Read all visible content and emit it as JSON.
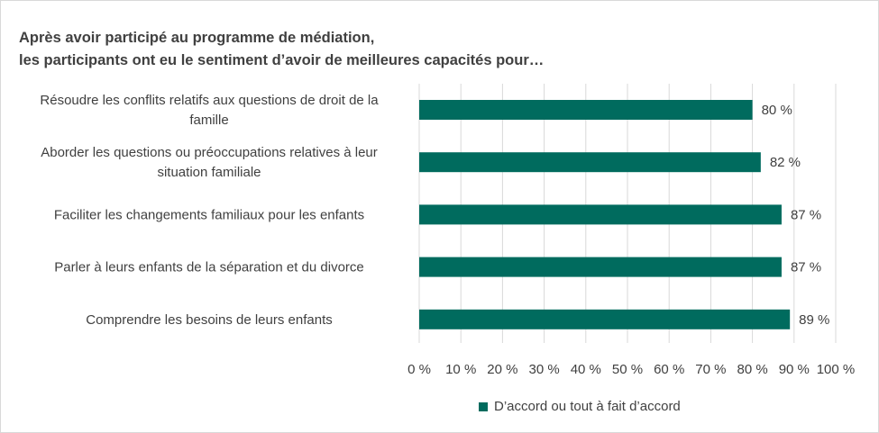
{
  "chart_data": {
    "type": "bar",
    "orientation": "horizontal",
    "title": [
      "Après avoir participé au programme de médiation,",
      "les participants ont eu le sentiment d’avoir de meilleures capacités pour…"
    ],
    "categories": [
      [
        "Résoudre les conflits relatifs aux questions de droit de la",
        "famille"
      ],
      [
        "Aborder les questions ou préoccupations relatives à leur",
        "situation familiale"
      ],
      [
        "Faciliter les changements familiaux pour les enfants"
      ],
      [
        "Parler à leurs enfants de la séparation et du divorce"
      ],
      [
        "Comprendre les besoins de leurs enfants"
      ]
    ],
    "series": [
      {
        "name": "D’accord ou tout à fait d’accord",
        "color": "#006b5e",
        "values": [
          80,
          82,
          87,
          87,
          89
        ]
      }
    ],
    "data_labels": [
      "80 %",
      "82 %",
      "87 %",
      "87 %",
      "89 %"
    ],
    "x_ticks": [
      "0 %",
      "10 %",
      "20 %",
      "30 %",
      "40 %",
      "50 %",
      "60 %",
      "70 %",
      "80 %",
      "90 %",
      "100 %"
    ],
    "xlim": [
      0,
      100
    ],
    "grid": true,
    "legend_position": "bottom"
  }
}
